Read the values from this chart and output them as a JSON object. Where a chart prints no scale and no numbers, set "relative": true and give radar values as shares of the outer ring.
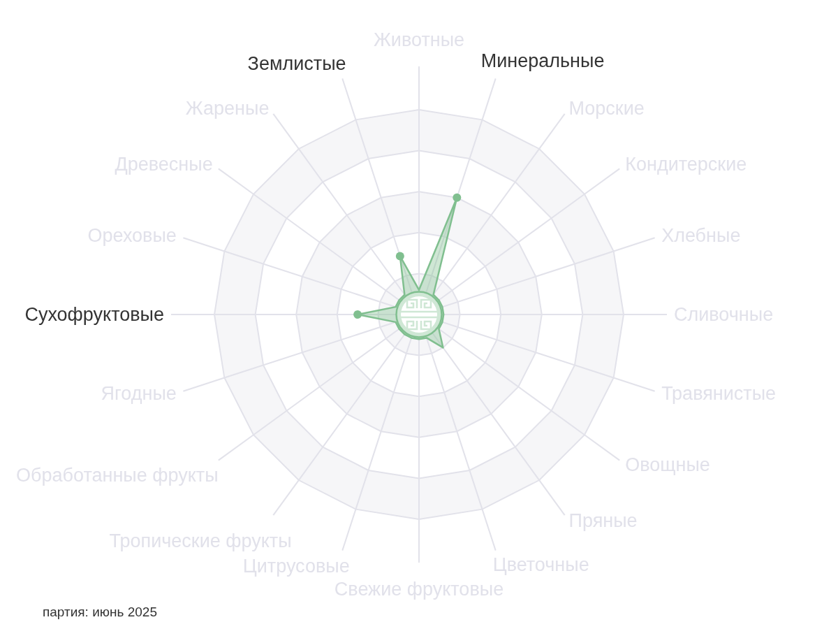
{
  "chart_data": {
    "type": "radar",
    "relative": true,
    "categories": [
      "Животные",
      "Минеральные",
      "Морские",
      "Кондитерские",
      "Хлебные",
      "Сливочные",
      "Травянистые",
      "Овощные",
      "Пряные",
      "Цветочные",
      "Свежие фруктовые",
      "Цитрусовые",
      "Тропические фрукты",
      "Обработанные фрукты",
      "Ягодные",
      "Сухофруктовые",
      "Ореховые",
      "Древесные",
      "Жареные",
      "Землистые"
    ],
    "series": [
      {
        "color": "#80bf8f",
        "values": [
          0.12,
          0.6,
          0.12,
          0.12,
          0.12,
          0.12,
          0.12,
          0.12,
          0.2,
          0.12,
          0.12,
          0.12,
          0.12,
          0.12,
          0.12,
          0.3,
          0.12,
          0.12,
          0.12,
          0.3
        ]
      }
    ],
    "grid": true,
    "marker": "circle",
    "annotations": [
      "партия: июнь 2025"
    ]
  }
}
